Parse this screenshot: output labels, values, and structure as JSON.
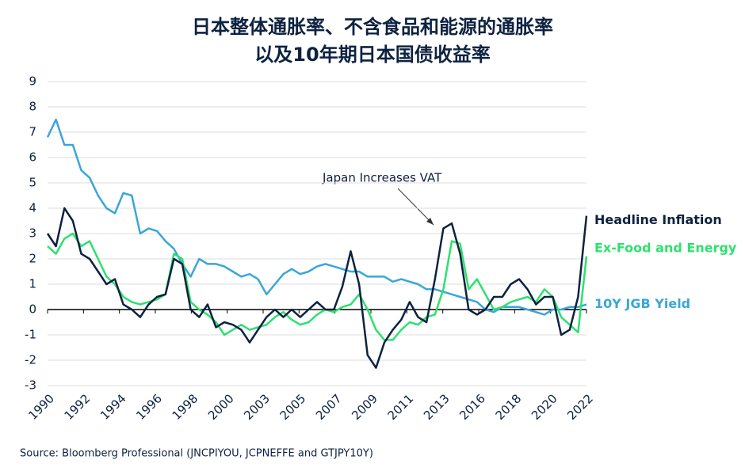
{
  "chart_data": {
    "type": "line",
    "title": [
      "日本整体通胀率、不含食品和能源的通胀率",
      "以及10年期日本国债收益率"
    ],
    "source": "Source: Bloomberg Professional (JNCPIYOU, JCPNEFFE and GTJPY10Y)",
    "annotation": "Japan Increases VAT",
    "x": [
      1990,
      1990.5,
      1991,
      1991.5,
      1992,
      1992.5,
      1993,
      1993.5,
      1994,
      1994.5,
      1995,
      1995.5,
      1996,
      1996.5,
      1997,
      1997.5,
      1998,
      1998.5,
      1999,
      1999.5,
      2000,
      2000.5,
      2001,
      2001.5,
      2002,
      2002.5,
      2003,
      2003.5,
      2004,
      2004.5,
      2005,
      2005.5,
      2006,
      2006.5,
      2007,
      2007.5,
      2008,
      2008.5,
      2009,
      2009.5,
      2010,
      2010.5,
      2011,
      2011.5,
      2012,
      2012.5,
      2013,
      2013.5,
      2014,
      2014.5,
      2015,
      2015.5,
      2016,
      2016.5,
      2017,
      2017.5,
      2018,
      2018.5,
      2019,
      2019.5,
      2020,
      2020.5,
      2021,
      2021.5,
      2022
    ],
    "series": [
      {
        "name": "Headline Inflation",
        "color": "#0d2240",
        "values": [
          3.0,
          2.5,
          4.0,
          3.5,
          2.2,
          2.0,
          1.5,
          1.0,
          1.2,
          0.2,
          0.0,
          -0.3,
          0.2,
          0.5,
          0.6,
          2.0,
          1.8,
          0.0,
          -0.3,
          0.2,
          -0.7,
          -0.5,
          -0.6,
          -0.8,
          -1.3,
          -0.8,
          -0.3,
          0.0,
          -0.3,
          0.0,
          -0.3,
          0.0,
          0.3,
          0.0,
          0.0,
          0.9,
          2.3,
          1.0,
          -1.8,
          -2.3,
          -1.3,
          -0.8,
          -0.4,
          0.3,
          -0.3,
          -0.5,
          1.2,
          3.2,
          3.4,
          2.2,
          0.0,
          -0.2,
          0.0,
          0.5,
          0.5,
          1.0,
          1.2,
          0.8,
          0.2,
          0.5,
          0.5,
          -1.0,
          -0.8,
          0.5,
          3.7
        ]
      },
      {
        "name": "Ex-Food and Energy",
        "color": "#2fe070",
        "values": [
          2.5,
          2.2,
          2.8,
          3.0,
          2.5,
          2.7,
          2.0,
          1.3,
          1.0,
          0.5,
          0.3,
          0.2,
          0.3,
          0.4,
          0.6,
          2.2,
          2.0,
          0.3,
          0.0,
          -0.2,
          -0.5,
          -1.0,
          -0.8,
          -0.6,
          -0.8,
          -0.7,
          -0.6,
          -0.3,
          -0.1,
          -0.4,
          -0.6,
          -0.5,
          -0.2,
          0.0,
          -0.1,
          0.1,
          0.2,
          0.6,
          0.0,
          -0.8,
          -1.2,
          -1.2,
          -0.8,
          -0.5,
          -0.6,
          -0.3,
          -0.2,
          0.8,
          2.7,
          2.6,
          0.8,
          1.2,
          0.6,
          0.0,
          0.1,
          0.3,
          0.4,
          0.5,
          0.3,
          0.8,
          0.5,
          -0.3,
          -0.6,
          -0.9,
          2.1
        ]
      },
      {
        "name": "10Y JGB Yield",
        "color": "#3aa6d8",
        "values": [
          6.8,
          7.5,
          6.5,
          6.5,
          5.5,
          5.2,
          4.5,
          4.0,
          3.8,
          4.6,
          4.5,
          3.0,
          3.2,
          3.1,
          2.7,
          2.4,
          1.8,
          1.3,
          2.0,
          1.8,
          1.8,
          1.7,
          1.5,
          1.3,
          1.4,
          1.2,
          0.6,
          1.0,
          1.4,
          1.6,
          1.4,
          1.5,
          1.7,
          1.8,
          1.7,
          1.6,
          1.5,
          1.5,
          1.3,
          1.3,
          1.3,
          1.1,
          1.2,
          1.1,
          1.0,
          0.8,
          0.8,
          0.7,
          0.6,
          0.5,
          0.4,
          0.3,
          0.0,
          -0.1,
          0.1,
          0.1,
          0.1,
          0.0,
          -0.1,
          -0.2,
          0.0,
          0.0,
          0.1,
          0.1,
          0.2
        ]
      }
    ],
    "xlim": [
      1990,
      2022
    ],
    "xticks": [
      1990,
      {
        "value": 1992.133,
        "label": "1992"
      },
      {
        "value": 1994.267,
        "label": "1994"
      },
      {
        "value": 1996.4,
        "label": "1996"
      },
      {
        "value": 1998.533,
        "label": "1998"
      },
      {
        "value": 2000.667,
        "label": "2000"
      },
      {
        "value": 2002.8,
        "label": "2003"
      },
      {
        "value": 2004.933,
        "label": "2005"
      },
      {
        "value": 2007.067,
        "label": "2007"
      },
      {
        "value": 2009.2,
        "label": "2009"
      },
      {
        "value": 2011.333,
        "label": "2011"
      },
      {
        "value": 2013.467,
        "label": "2013"
      },
      {
        "value": 2015.6,
        "label": "2016"
      },
      {
        "value": 2017.733,
        "label": "2018"
      },
      {
        "value": 2019.867,
        "label": "2020"
      },
      2022
    ],
    "ylim": [
      -3,
      9
    ],
    "yticks": [
      -3,
      -2,
      -1,
      0,
      1,
      2,
      3,
      4,
      5,
      6,
      7,
      8,
      9
    ],
    "grid": true
  }
}
